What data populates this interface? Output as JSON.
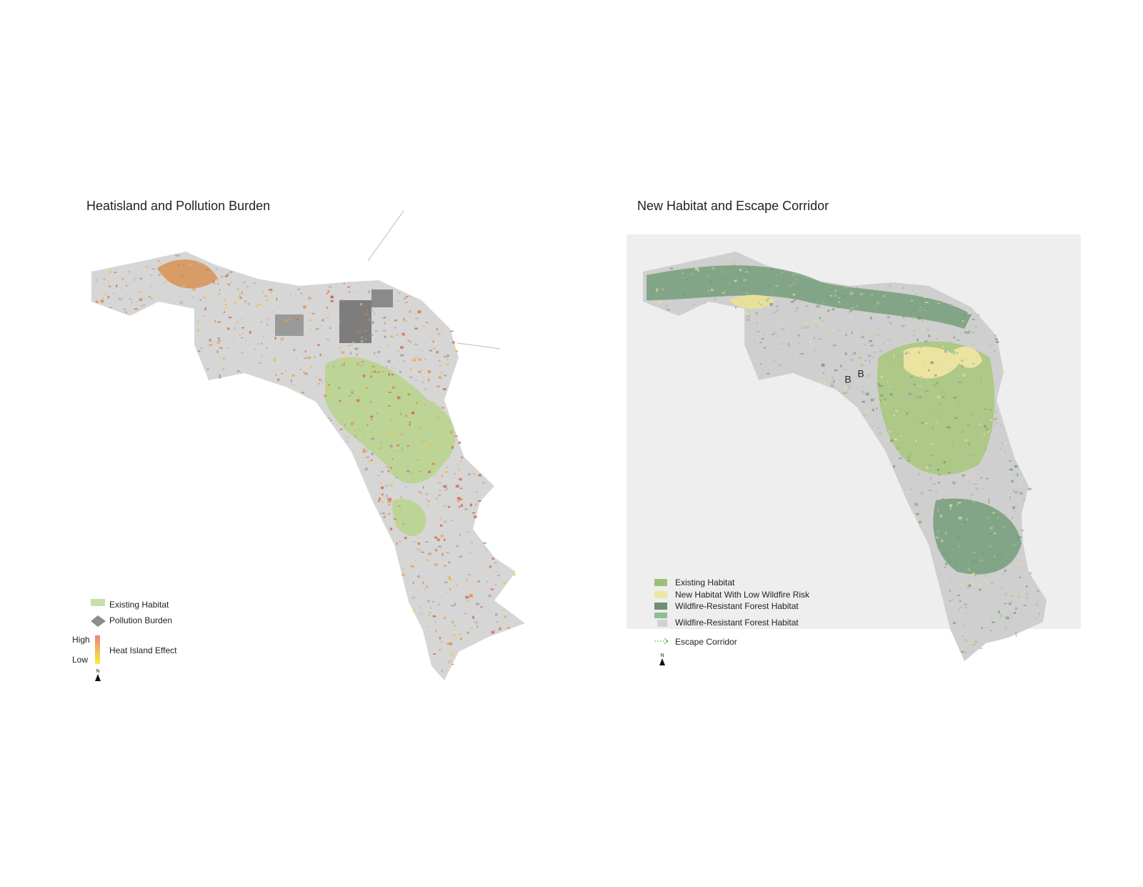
{
  "maps": [
    {
      "title": "Heatisland and Pollution Burden",
      "legend": [
        "Existing Habitat",
        "Pollution Burden",
        "Heat Island Effect"
      ],
      "scale": {
        "high": "High",
        "low": "Low"
      },
      "north": "N"
    },
    {
      "title": "New Habitat and Escape Corridor",
      "legend": [
        "Existing Habitat",
        "New Habitat With Low Wildfire Risk",
        "Wildfire-Resistant Forest Habitat",
        "Wildfire-Resistant Forest Habitat",
        "Escape Corridor"
      ],
      "markers": [
        "B",
        "B"
      ],
      "north": "N"
    }
  ]
}
